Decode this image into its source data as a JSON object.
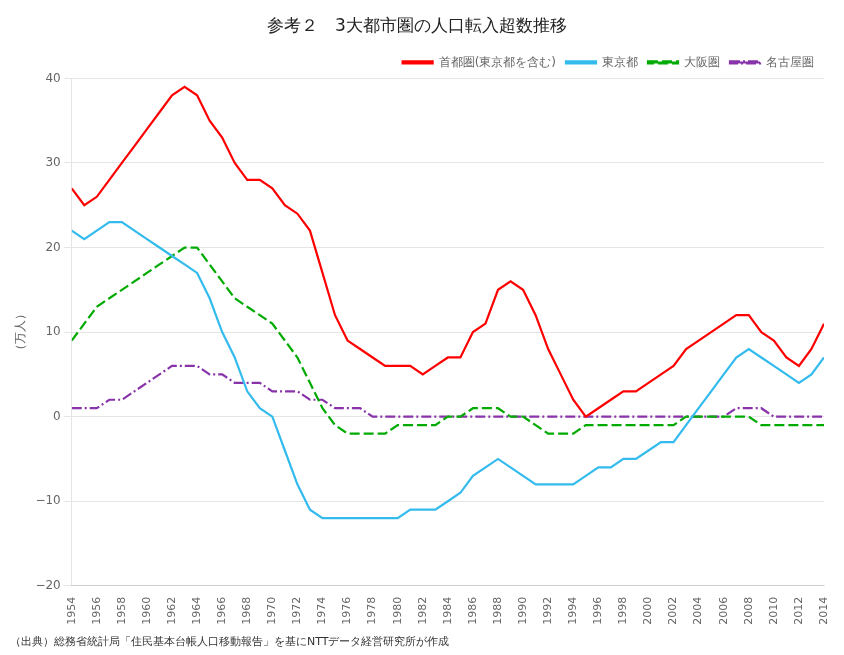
{
  "chart_data": {
    "type": "line",
    "title": "参考２　3大都市圏の人口転入超数推移",
    "ylabel": "（万人）",
    "footnote": "（出典）総務省統計局「住民基本台帳人口移動報告」を基にNTTデータ経営研究所が作成",
    "x": [
      1954,
      1955,
      1956,
      1957,
      1958,
      1959,
      1960,
      1961,
      1962,
      1963,
      1964,
      1965,
      1966,
      1967,
      1968,
      1969,
      1970,
      1971,
      1972,
      1973,
      1974,
      1975,
      1976,
      1977,
      1978,
      1979,
      1980,
      1981,
      1982,
      1983,
      1984,
      1985,
      1986,
      1987,
      1988,
      1989,
      1990,
      1991,
      1992,
      1993,
      1994,
      1995,
      1996,
      1997,
      1998,
      1999,
      2000,
      2001,
      2002,
      2003,
      2004,
      2005,
      2006,
      2007,
      2008,
      2009,
      2010,
      2011,
      2012,
      2013,
      2014
    ],
    "series": [
      {
        "name": "首都圏(東京都を含む)",
        "color": "#ff0000",
        "line_style": "solid",
        "values": [
          27,
          25,
          26,
          28,
          30,
          32,
          34,
          36,
          38,
          39,
          38,
          35,
          33,
          30,
          28,
          28,
          27,
          25,
          24,
          22,
          17,
          12,
          9,
          8,
          7,
          6,
          6,
          6,
          5,
          6,
          7,
          7,
          10,
          11,
          15,
          16,
          15,
          12,
          8,
          5,
          2,
          0,
          1,
          2,
          3,
          3,
          4,
          5,
          6,
          8,
          9,
          10,
          11,
          12,
          12,
          10,
          9,
          7,
          6,
          8,
          11
        ]
      },
      {
        "name": "東京都",
        "color": "#33bbee",
        "line_style": "solid",
        "values": [
          22,
          21,
          22,
          23,
          23,
          22,
          21,
          20,
          19,
          18,
          17,
          14,
          10,
          7,
          3,
          1,
          0,
          -4,
          -8,
          -11,
          -12,
          -12,
          -12,
          -12,
          -12,
          -12,
          -12,
          -11,
          -11,
          -11,
          -10,
          -9,
          -7,
          -6,
          -5,
          -6,
          -7,
          -8,
          -8,
          -8,
          -8,
          -7,
          -6,
          -6,
          -5,
          -5,
          -4,
          -3,
          -3,
          -1,
          1,
          3,
          5,
          7,
          8,
          7,
          6,
          5,
          4,
          5,
          7
        ]
      },
      {
        "name": "大阪圏",
        "color": "#00aa00",
        "line_style": "dashed",
        "values": [
          9,
          11,
          13,
          14,
          15,
          16,
          17,
          18,
          19,
          20,
          20,
          18,
          16,
          14,
          13,
          12,
          11,
          9,
          7,
          4,
          1,
          -1,
          -2,
          -2,
          -2,
          -2,
          -1,
          -1,
          -1,
          -1,
          0,
          0,
          1,
          1,
          1,
          0,
          0,
          -1,
          -2,
          -2,
          -2,
          -1,
          -1,
          -1,
          -1,
          -1,
          -1,
          -1,
          -1,
          0,
          0,
          0,
          0,
          0,
          0,
          -1,
          -1,
          -1,
          -1,
          -1,
          -1
        ]
      },
      {
        "name": "名古屋圏",
        "color": "#8833aa",
        "line_style": "dashdot",
        "values": [
          1,
          1,
          1,
          2,
          2,
          3,
          4,
          5,
          6,
          6,
          6,
          5,
          5,
          4,
          4,
          4,
          3,
          3,
          3,
          2,
          2,
          1,
          1,
          1,
          0,
          0,
          0,
          0,
          0,
          0,
          0,
          0,
          0,
          0,
          0,
          0,
          0,
          0,
          0,
          0,
          0,
          0,
          0,
          0,
          0,
          0,
          0,
          0,
          0,
          0,
          0,
          0,
          0,
          1,
          1,
          1,
          0,
          0,
          0,
          0,
          0
        ]
      }
    ],
    "xlim": [
      1954,
      2014
    ],
    "xticks": [
      1954,
      1956,
      1958,
      1960,
      1962,
      1964,
      1966,
      1968,
      1970,
      1972,
      1974,
      1976,
      1978,
      1980,
      1982,
      1984,
      1986,
      1988,
      1990,
      1992,
      1994,
      1996,
      1998,
      2000,
      2002,
      2004,
      2006,
      2008,
      2010,
      2012,
      2014
    ],
    "ylim": [
      -20,
      40
    ],
    "yticks": [
      {
        "value": -20,
        "label": "−20"
      },
      {
        "value": -10,
        "label": "−10"
      },
      0,
      10,
      20,
      30,
      40
    ],
    "grid": "y",
    "legend": "upper right"
  }
}
